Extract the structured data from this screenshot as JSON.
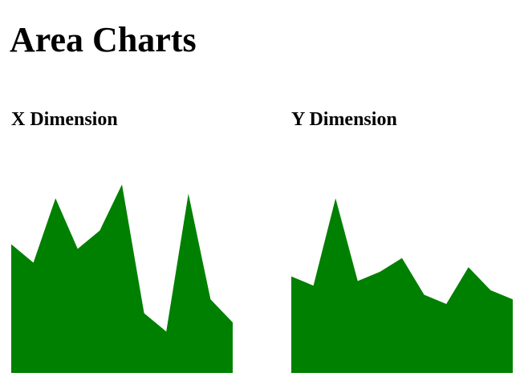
{
  "page": {
    "title": "Area Charts"
  },
  "chart_data": [
    {
      "type": "area",
      "title": "X Dimension",
      "x": [
        0,
        1,
        2,
        3,
        4,
        5,
        6,
        7,
        8,
        9,
        10
      ],
      "values": [
        14,
        12,
        19,
        13.5,
        15.5,
        20.5,
        6.5,
        4.5,
        19.5,
        8,
        5.5
      ],
      "ylim": [
        0,
        20.5
      ],
      "color": "#008000",
      "grid": false
    },
    {
      "type": "area",
      "title": "Y Dimension",
      "x": [
        0,
        1,
        2,
        3,
        4,
        5,
        6,
        7,
        8,
        9,
        10
      ],
      "values": [
        10.5,
        9.5,
        19,
        10,
        11,
        12.5,
        8.5,
        7.5,
        11.5,
        9,
        8
      ],
      "ylim": [
        0,
        20.5
      ],
      "color": "#008000",
      "grid": false
    }
  ]
}
